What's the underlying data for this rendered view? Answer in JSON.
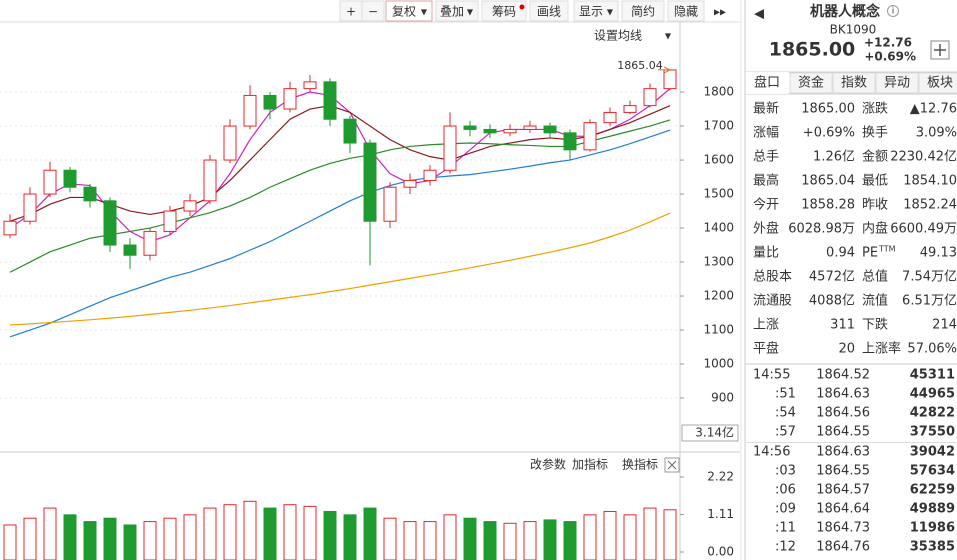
{
  "toolbar": {
    "buttons": [
      "+",
      "−",
      "复权",
      "叠加",
      "筹码",
      "画线",
      "显示",
      "简约",
      "隐藏"
    ]
  },
  "chart_data": [
    {
      "type": "candlestick",
      "menu": "设置均线",
      "annotation": "1865.04",
      "cursor_label": "3.14亿",
      "open": [
        1380,
        1420,
        1500,
        1570,
        1520,
        1480,
        1350,
        1320,
        1390,
        1450,
        1480,
        1600,
        1700,
        1790,
        1750,
        1810,
        1830,
        1720,
        1650,
        1420,
        1520,
        1540,
        1570,
        1700,
        1690,
        1680,
        1690,
        1700,
        1680,
        1630,
        1710,
        1740,
        1760,
        1810
      ],
      "high": [
        1440,
        1520,
        1595,
        1580,
        1530,
        1490,
        1370,
        1400,
        1465,
        1500,
        1615,
        1720,
        1820,
        1800,
        1830,
        1850,
        1840,
        1730,
        1660,
        1535,
        1560,
        1585,
        1740,
        1715,
        1705,
        1705,
        1715,
        1710,
        1690,
        1720,
        1755,
        1775,
        1825,
        1865.04
      ],
      "low": [
        1370,
        1410,
        1490,
        1505,
        1460,
        1330,
        1280,
        1305,
        1380,
        1435,
        1470,
        1590,
        1690,
        1720,
        1740,
        1800,
        1700,
        1620,
        1290,
        1400,
        1500,
        1525,
        1560,
        1670,
        1665,
        1670,
        1680,
        1665,
        1600,
        1625,
        1700,
        1735,
        1755,
        1805
      ],
      "close": [
        1420,
        1500,
        1570,
        1520,
        1480,
        1350,
        1320,
        1390,
        1450,
        1480,
        1600,
        1700,
        1790,
        1750,
        1810,
        1830,
        1720,
        1650,
        1420,
        1520,
        1540,
        1570,
        1700,
        1690,
        1680,
        1690,
        1700,
        1680,
        1630,
        1710,
        1740,
        1760,
        1810,
        1865
      ],
      "up_color": "#e8262a",
      "down_color": "#1f9a2f",
      "series": [
        {
          "color": "#d020c0",
          "values": [
            1400,
            1440,
            1500,
            1530,
            1525,
            1450,
            1390,
            1360,
            1380,
            1430,
            1480,
            1560,
            1660,
            1740,
            1780,
            1800,
            1790,
            1740,
            1630,
            1560,
            1530,
            1540,
            1580,
            1630,
            1680,
            1690,
            1690,
            1690,
            1670,
            1670,
            1690,
            1720,
            1760,
            1810
          ]
        },
        {
          "color": "#8b1a1a",
          "values": [
            1420,
            1440,
            1470,
            1490,
            1490,
            1470,
            1450,
            1440,
            1450,
            1465,
            1490,
            1540,
            1600,
            1660,
            1720,
            1750,
            1760,
            1740,
            1700,
            1660,
            1630,
            1610,
            1600,
            1620,
            1640,
            1650,
            1660,
            1665,
            1660,
            1670,
            1690,
            1710,
            1735,
            1760
          ]
        },
        {
          "color": "#2a8a2a",
          "values": [
            1270,
            1300,
            1330,
            1350,
            1370,
            1380,
            1390,
            1400,
            1415,
            1430,
            1445,
            1465,
            1490,
            1520,
            1545,
            1570,
            1590,
            1605,
            1615,
            1630,
            1640,
            1645,
            1648,
            1650,
            1648,
            1645,
            1643,
            1640,
            1640,
            1655,
            1670,
            1685,
            1700,
            1718
          ]
        },
        {
          "color": "#1e7fd6",
          "values": [
            1080,
            1100,
            1120,
            1145,
            1170,
            1195,
            1215,
            1235,
            1255,
            1270,
            1290,
            1310,
            1335,
            1360,
            1390,
            1420,
            1450,
            1480,
            1505,
            1525,
            1540,
            1548,
            1553,
            1557,
            1565,
            1573,
            1582,
            1592,
            1600,
            1615,
            1630,
            1648,
            1668,
            1688
          ]
        },
        {
          "color": "#f0a000",
          "values": [
            1115,
            1118,
            1122,
            1126,
            1130,
            1135,
            1140,
            1146,
            1152,
            1158,
            1165,
            1172,
            1180,
            1188,
            1196,
            1204,
            1213,
            1222,
            1232,
            1242,
            1252,
            1262,
            1272,
            1283,
            1294,
            1305,
            1317,
            1329,
            1342,
            1356,
            1374,
            1394,
            1418,
            1444
          ]
        }
      ],
      "ylim": [
        753,
        2006
      ],
      "yticks": [
        900,
        1000,
        1100,
        1200,
        1300,
        1400,
        1500,
        1600,
        1700,
        1800
      ],
      "grid": true
    },
    {
      "type": "bar",
      "menu": [
        "改参数",
        "加指标",
        "换指标"
      ],
      "values": [
        0.8,
        1.0,
        1.3,
        1.1,
        0.9,
        1.0,
        0.8,
        0.9,
        1.0,
        1.1,
        1.3,
        1.4,
        1.5,
        1.3,
        1.4,
        1.35,
        1.2,
        1.1,
        1.3,
        1.0,
        0.9,
        0.9,
        1.1,
        1.0,
        0.9,
        0.85,
        0.9,
        0.95,
        0.9,
        1.1,
        1.2,
        1.1,
        1.3,
        1.25
      ],
      "ylim": [
        0,
        2.22
      ],
      "yticks": [
        {
          "value": 0,
          "label": "0.00"
        },
        1.11,
        2.22
      ]
    }
  ],
  "quote": {
    "title": "机器人概念",
    "code": "BK1090",
    "price": "1865.00",
    "change": "+12.76",
    "pct": "+0.69%",
    "tabs": [
      "盘口",
      "资金",
      "指数",
      "异动",
      "板块"
    ],
    "rows": [
      [
        {
          "label": "最新",
          "value": "1865.00",
          "color": "#e00000"
        },
        {
          "label": "涨跌",
          "value": "▲12.76",
          "color": "#e00000"
        }
      ],
      [
        {
          "label": "涨幅",
          "value": "+0.69%",
          "color": "#e00000"
        },
        {
          "label": "换手",
          "value": "3.09%"
        }
      ],
      [
        {
          "label": "总手",
          "value": "1.26亿"
        },
        {
          "label": "金额",
          "value": "2230.42亿",
          "color": "#1a3fb0"
        }
      ],
      [
        {
          "label": "最高",
          "value": "1865.04",
          "color": "#e00000"
        },
        {
          "label": "最低",
          "value": "1854.10",
          "color": "#e00000"
        }
      ],
      [
        {
          "label": "今开",
          "value": "1858.28",
          "color": "#e00000"
        },
        {
          "label": "昨收",
          "value": "1852.24"
        }
      ],
      [
        {
          "label": "外盘",
          "value": "6028.98万",
          "color": "#e00000"
        },
        {
          "label": "内盘",
          "value": "6600.49万",
          "color": "#1f9a2f"
        }
      ],
      [
        {
          "label": "量比",
          "value": "0.94"
        },
        {
          "label": "PE",
          "sup": "TTM",
          "value": "49.13"
        }
      ],
      [
        {
          "label": "总股本",
          "value": "4572亿"
        },
        {
          "label": "总值",
          "value": "7.54万亿"
        }
      ],
      [
        {
          "label": "流通股",
          "value": "4088亿"
        },
        {
          "label": "流值",
          "value": "6.51万亿"
        }
      ],
      [
        {
          "label": "上涨",
          "value": "311",
          "color": "#e00000"
        },
        {
          "label": "下跌",
          "value": "214",
          "color": "#1f9a2f"
        }
      ],
      [
        {
          "label": "平盘",
          "value": "20"
        },
        {
          "label": "上涨率",
          "value": "57.06%"
        }
      ]
    ],
    "trades": [
      {
        "time": "14:55",
        "price": "1864.52",
        "volume": "45311",
        "color": "#1f9a2f"
      },
      {
        "time": ":51",
        "price": "1864.63",
        "volume": "44965",
        "color": "#e00000"
      },
      {
        "time": ":54",
        "price": "1864.56",
        "volume": "42822",
        "color": "#1f9a2f"
      },
      {
        "time": ":57",
        "price": "1864.55",
        "volume": "37550",
        "color": "#1f9a2f"
      },
      {
        "time": "14:56",
        "price": "1864.63",
        "volume": "39042",
        "color": "#1f9a2f"
      },
      {
        "time": ":03",
        "price": "1864.55",
        "volume": "57634",
        "color": "#1f9a2f"
      },
      {
        "time": ":06",
        "price": "1864.57",
        "volume": "62259",
        "color": "#e00000"
      },
      {
        "time": ":09",
        "price": "1864.64",
        "volume": "49889",
        "color": "#1f9a2f"
      },
      {
        "time": ":11",
        "price": "1864.73",
        "volume": "11986",
        "color": "#e00000"
      },
      {
        "time": ":12",
        "price": "1864.76",
        "volume": "35385",
        "color": "#e00000"
      }
    ]
  }
}
